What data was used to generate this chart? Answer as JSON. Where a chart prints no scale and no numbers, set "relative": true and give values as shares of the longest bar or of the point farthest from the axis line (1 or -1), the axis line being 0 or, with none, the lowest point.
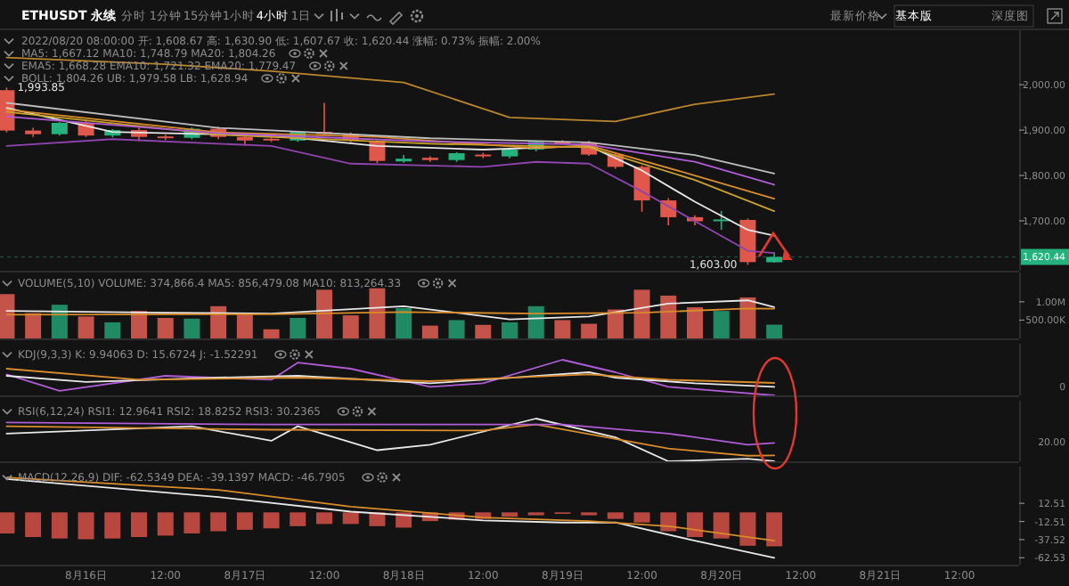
{
  "chart_data": [
    {
      "type": "candlestick",
      "title": "ETHUSDT 永续",
      "x": [
        "2022-08-15T12:00",
        "2022-08-15T16:00",
        "2022-08-15T20:00",
        "2022-08-16T00:00",
        "2022-08-16T04:00",
        "2022-08-16T08:00",
        "2022-08-16T12:00",
        "2022-08-16T16:00",
        "2022-08-16T20:00",
        "2022-08-17T00:00",
        "2022-08-17T04:00",
        "2022-08-17T08:00",
        "2022-08-17T12:00",
        "2022-08-17T16:00",
        "2022-08-17T20:00",
        "2022-08-18T00:00",
        "2022-08-18T04:00",
        "2022-08-18T08:00",
        "2022-08-18T12:00",
        "2022-08-18T16:00",
        "2022-08-18T20:00",
        "2022-08-19T00:00",
        "2022-08-19T04:00",
        "2022-08-19T08:00",
        "2022-08-19T12:00",
        "2022-08-19T16:00",
        "2022-08-19T20:00",
        "2022-08-20T00:00",
        "2022-08-20T04:00",
        "2022-08-20T08:00"
      ],
      "ohlc": [
        [
          1988,
          1993.85,
          1895,
          1899
        ],
        [
          1899,
          1905,
          1885,
          1891
        ],
        [
          1891,
          1918,
          1888,
          1916
        ],
        [
          1916,
          1920,
          1885,
          1888
        ],
        [
          1888,
          1902,
          1884,
          1900
        ],
        [
          1900,
          1905,
          1875,
          1885
        ],
        [
          1886,
          1890,
          1878,
          1885
        ],
        [
          1883,
          1906,
          1880,
          1903
        ],
        [
          1903,
          1908,
          1880,
          1885
        ],
        [
          1885,
          1890,
          1866,
          1877
        ],
        [
          1881,
          1884,
          1874,
          1880
        ],
        [
          1877,
          1898,
          1874,
          1896
        ],
        [
          1896,
          1960,
          1888,
          1891
        ],
        [
          1891,
          1895,
          1873,
          1877
        ],
        [
          1876,
          1878,
          1827,
          1832
        ],
        [
          1831,
          1845,
          1828,
          1837
        ],
        [
          1839,
          1842,
          1830,
          1834
        ],
        [
          1834,
          1851,
          1830,
          1849
        ],
        [
          1846,
          1850,
          1838,
          1845
        ],
        [
          1842,
          1859,
          1838,
          1857
        ],
        [
          1857,
          1876,
          1853,
          1874
        ],
        [
          1874,
          1878,
          1868,
          1872
        ],
        [
          1872,
          1876,
          1843,
          1846
        ],
        [
          1846,
          1850,
          1815,
          1819
        ],
        [
          1819,
          1822,
          1720,
          1745
        ],
        [
          1745,
          1750,
          1690,
          1708
        ],
        [
          1708,
          1712,
          1690,
          1699
        ],
        [
          1700,
          1722,
          1680,
          1703
        ],
        [
          1702,
          1705,
          1603,
          1609
        ],
        [
          1608.67,
          1630.9,
          1607.67,
          1620.44
        ]
      ],
      "colors": [
        "#e0574c",
        "#e0574c",
        "#26b27f",
        "#e0574c",
        "#26b27f",
        "#e0574c",
        "#e0574c",
        "#26b27f",
        "#e0574c",
        "#e0574c",
        "#e0574c",
        "#26b27f",
        "#e0574c",
        "#e0574c",
        "#e0574c",
        "#26b27f",
        "#e0574c",
        "#26b27f",
        "#e0574c",
        "#26b27f",
        "#26b27f",
        "#e0574c",
        "#e0574c",
        "#e0574c",
        "#e0574c",
        "#e0574c",
        "#e0574c",
        "#26b27f",
        "#e0574c",
        "#26b27f"
      ],
      "series": [
        {
          "type": "line",
          "color": "#e8e8e8",
          "x": [
            "2022-08-15T12:00",
            "2022-08-16T04:00",
            "2022-08-17T04:00",
            "2022-08-17T20:00",
            "2022-08-18T12:00",
            "2022-08-19T04:00",
            "2022-08-19T12:00",
            "2022-08-19T20:00",
            "2022-08-20T04:00",
            "2022-08-20T08:00"
          ],
          "values": [
            1949,
            1896,
            1888,
            1865,
            1857,
            1865,
            1811,
            1742,
            1680,
            1667.12
          ]
        },
        {
          "type": "line",
          "color": "#c9a227",
          "x": [
            "2022-08-15T12:00",
            "2022-08-16T20:00",
            "2022-08-18T04:00",
            "2022-08-19T04:00",
            "2022-08-19T20:00",
            "2022-08-20T08:00"
          ],
          "values": [
            1940,
            1890,
            1870,
            1862,
            1790,
            1721.32
          ]
        },
        {
          "type": "line",
          "color": "#d98c2b",
          "x": [
            "2022-08-15T12:00",
            "2022-08-16T20:00",
            "2022-08-17T20:00",
            "2022-08-18T20:00",
            "2022-08-19T04:00",
            "2022-08-19T20:00",
            "2022-08-20T08:00"
          ],
          "values": [
            1945,
            1895,
            1885,
            1860,
            1866,
            1800,
            1748.79
          ]
        },
        {
          "type": "line",
          "color": "#b05cd6",
          "x": [
            "2022-08-15T12:00",
            "2022-08-16T20:00",
            "2022-08-18T04:00",
            "2022-08-19T04:00",
            "2022-08-19T20:00",
            "2022-08-20T08:00"
          ],
          "values": [
            1930,
            1893,
            1875,
            1868,
            1830,
            1779.47
          ]
        },
        {
          "type": "line",
          "color": "#bdbdbd",
          "x": [
            "2022-08-15T12:00",
            "2022-08-16T20:00",
            "2022-08-18T04:00",
            "2022-08-19T04:00",
            "2022-08-19T20:00",
            "2022-08-20T08:00"
          ],
          "values": [
            1960,
            1905,
            1882,
            1873,
            1845,
            1804.26
          ]
        },
        {
          "type": "line",
          "color": "#b9862e",
          "x": [
            "2022-08-15T12:00",
            "2022-08-16T12:00",
            "2022-08-17T04:00",
            "2022-08-18T00:00",
            "2022-08-18T16:00",
            "2022-08-19T08:00",
            "2022-08-19T20:00",
            "2022-08-20T08:00"
          ],
          "values": [
            2060,
            2045,
            2030,
            2005,
            1928,
            1919,
            1957,
            1979.58
          ]
        },
        {
          "type": "line",
          "color": "#8e44ad",
          "x": [
            "2022-08-15T12:00",
            "2022-08-16T04:00",
            "2022-08-17T04:00",
            "2022-08-17T16:00",
            "2022-08-18T12:00",
            "2022-08-18T20:00",
            "2022-08-19T04:00",
            "2022-08-19T12:00",
            "2022-08-20T04:00",
            "2022-08-20T08:00"
          ],
          "values": [
            1865,
            1880,
            1865,
            1826,
            1819,
            1830,
            1826,
            1765,
            1634,
            1628.94
          ]
        }
      ],
      "xlim": [
        "2022-08-15T11:00",
        "2022-08-21T21:00"
      ],
      "ylim": [
        1590,
        2120
      ],
      "yticks": [
        {
          "value": 1700,
          "label": "1,700.00"
        },
        {
          "value": 1800,
          "label": "1,800.00"
        },
        {
          "value": 1900,
          "label": "1,900.00"
        },
        {
          "value": 2000,
          "label": "2,000.00"
        }
      ],
      "tick_labels": "y",
      "ref_lines": [
        {
          "axis": "y",
          "value": 1620.44,
          "label": "1,620.44",
          "color": "#26b27f"
        }
      ],
      "annotations": [
        "分时",
        "1分钟",
        "15分钟",
        "1小时",
        "4小时",
        "1日",
        "最新价格",
        "基本版",
        "深度图",
        "2022/08/20 08:00:00  开: 1,608.67  高: 1,630.90  低: 1,607.67  收: 1,620.44  涨幅: 0.73%  振幅: 2.00%",
        "MA5: 1,667.12  MA10: 1,748.79  MA20: 1,804.26",
        "EMA5: 1,668.28  EMA10: 1,721.32  EMA20: 1,779.47",
        "BOLL: 1,804.26  UB: 1,979.58  LB: 1,628.94",
        {
          "text": "1,993.85",
          "x": "2022-08-15T12:00",
          "y": 1993.85
        },
        {
          "text": "1,603.00",
          "x": "2022-08-20T04:00",
          "y": 1603
        }
      ]
    },
    {
      "type": "bar",
      "title": "VOLUME(5,10)  VOLUME: 374,866.4  MA5: 856,479.08  MA10: 813,264.33",
      "x": [
        "2022-08-15T12:00",
        "2022-08-15T16:00",
        "2022-08-15T20:00",
        "2022-08-16T00:00",
        "2022-08-16T04:00",
        "2022-08-16T08:00",
        "2022-08-16T12:00",
        "2022-08-16T16:00",
        "2022-08-16T20:00",
        "2022-08-17T00:00",
        "2022-08-17T04:00",
        "2022-08-17T08:00",
        "2022-08-17T12:00",
        "2022-08-17T16:00",
        "2022-08-17T20:00",
        "2022-08-18T00:00",
        "2022-08-18T04:00",
        "2022-08-18T08:00",
        "2022-08-18T12:00",
        "2022-08-18T16:00",
        "2022-08-18T20:00",
        "2022-08-19T00:00",
        "2022-08-19T04:00",
        "2022-08-19T08:00",
        "2022-08-19T12:00",
        "2022-08-19T16:00",
        "2022-08-19T20:00",
        "2022-08-20T00:00",
        "2022-08-20T04:00",
        "2022-08-20T08:00"
      ],
      "series": [
        {
          "type": "bar",
          "values": [
            1210000,
            690000,
            920000,
            600000,
            440000,
            750000,
            560000,
            540000,
            880000,
            690000,
            250000,
            560000,
            1330000,
            630000,
            1370000,
            830000,
            350000,
            500000,
            370000,
            440000,
            880000,
            500000,
            400000,
            790000,
            1330000,
            1170000,
            850000,
            750000,
            1120000,
            374866.4
          ],
          "colors": [
            "#c4534a",
            "#c4534a",
            "#1f8a63",
            "#c4534a",
            "#1f8a63",
            "#c4534a",
            "#c4534a",
            "#1f8a63",
            "#c4534a",
            "#c4534a",
            "#c4534a",
            "#1f8a63",
            "#c4534a",
            "#c4534a",
            "#c4534a",
            "#1f8a63",
            "#c4534a",
            "#1f8a63",
            "#c4534a",
            "#1f8a63",
            "#1f8a63",
            "#c4534a",
            "#c4534a",
            "#c4534a",
            "#c4534a",
            "#c4534a",
            "#c4534a",
            "#1f8a63",
            "#c4534a",
            "#1f8a63"
          ]
        },
        {
          "type": "line",
          "color": "#e8e8e8",
          "x": [
            "2022-08-15T12:00",
            "2022-08-16T12:00",
            "2022-08-17T04:00",
            "2022-08-18T00:00",
            "2022-08-18T16:00",
            "2022-08-19T04:00",
            "2022-08-19T16:00",
            "2022-08-20T04:00",
            "2022-08-20T08:00"
          ],
          "values": [
            750000,
            700000,
            680000,
            880000,
            520000,
            600000,
            950000,
            1040000,
            856479.08
          ]
        },
        {
          "type": "line",
          "color": "#d98c2b",
          "x": [
            "2022-08-15T12:00",
            "2022-08-17T04:00",
            "2022-08-18T00:00",
            "2022-08-18T20:00",
            "2022-08-19T12:00",
            "2022-08-20T04:00",
            "2022-08-20T08:00"
          ],
          "values": [
            650000,
            660000,
            720000,
            680000,
            700000,
            820000,
            813264.33
          ]
        }
      ],
      "xlim": [
        "2022-08-15T11:00",
        "2022-08-21T21:00"
      ],
      "ylim": [
        0,
        1800000
      ],
      "yticks": [
        {
          "value": 500000,
          "label": "500.00K"
        },
        {
          "value": 1000000,
          "label": "1.00M"
        }
      ],
      "tick_labels": "y"
    },
    {
      "type": "line",
      "title": "KDJ(9,3,3)  K: 9.94063  D: 15.6724  J: -1.52291",
      "series": [
        {
          "type": "line",
          "color": "#b05cd6",
          "x": [
            "2022-08-15T12:00",
            "2022-08-15T20:00",
            "2022-08-16T12:00",
            "2022-08-17T04:00",
            "2022-08-17T08:00",
            "2022-08-17T16:00",
            "2022-08-18T04:00",
            "2022-08-18T12:00",
            "2022-08-19T00:00",
            "2022-08-19T08:00",
            "2022-08-19T16:00",
            "2022-08-20T08:00"
          ],
          "values": [
            0.59,
            0.13,
            0.55,
            0.44,
            0.92,
            0.75,
            0.24,
            0.34,
            1,
            0.65,
            0.24,
            0
          ]
        },
        {
          "type": "line",
          "color": "#e8e8e8",
          "x": [
            "2022-08-15T12:00",
            "2022-08-16T00:00",
            "2022-08-16T20:00",
            "2022-08-17T08:00",
            "2022-08-18T04:00",
            "2022-08-18T12:00",
            "2022-08-19T04:00",
            "2022-08-19T08:00",
            "2022-08-19T20:00",
            "2022-08-20T08:00"
          ],
          "values": [
            0.55,
            0.38,
            0.5,
            0.55,
            0.34,
            0.44,
            0.65,
            0.5,
            0.34,
            0.24
          ]
        },
        {
          "type": "line",
          "color": "#d98c2b",
          "x": [
            "2022-08-15T12:00",
            "2022-08-16T08:00",
            "2022-08-17T08:00",
            "2022-08-18T04:00",
            "2022-08-19T04:00",
            "2022-08-19T16:00",
            "2022-08-20T08:00"
          ],
          "values": [
            0.75,
            0.44,
            0.5,
            0.4,
            0.59,
            0.44,
            0.35
          ]
        }
      ],
      "relative": true,
      "xlim": [
        "2022-08-15T11:00",
        "2022-08-21T21:00"
      ],
      "tick_labels": false,
      "annotations": [
        "0"
      ]
    },
    {
      "type": "line",
      "title": "RSI(6,12,24)  RSI1: 12.9641  RSI2: 18.8252  RSI3: 30.2365",
      "series": [
        {
          "type": "line",
          "color": "#e8e8e8",
          "x": [
            "2022-08-15T12:00",
            "2022-08-16T16:00",
            "2022-08-17T04:00",
            "2022-08-17T08:00",
            "2022-08-17T20:00",
            "2022-08-18T04:00",
            "2022-08-18T20:00",
            "2022-08-19T08:00",
            "2022-08-19T16:00",
            "2022-08-20T04:00",
            "2022-08-20T08:00"
          ],
          "values": [
            0.65,
            0.82,
            0.48,
            0.82,
            0.26,
            0.39,
            1,
            0.56,
            0,
            0.06,
            0
          ]
        },
        {
          "type": "line",
          "color": "#d98c2b",
          "x": [
            "2022-08-15T12:00",
            "2022-08-17T04:00",
            "2022-08-18T12:00",
            "2022-08-18T20:00",
            "2022-08-19T16:00",
            "2022-08-20T04:00",
            "2022-08-20T08:00"
          ],
          "values": [
            0.82,
            0.74,
            0.72,
            0.86,
            0.3,
            0.13,
            0.14
          ]
        },
        {
          "type": "line",
          "color": "#b05cd6",
          "x": [
            "2022-08-15T12:00",
            "2022-08-17T04:00",
            "2022-08-19T00:00",
            "2022-08-19T16:00",
            "2022-08-20T04:00",
            "2022-08-20T08:00"
          ],
          "values": [
            0.91,
            0.86,
            0.86,
            0.65,
            0.39,
            0.43
          ]
        }
      ],
      "relative": true,
      "xlim": [
        "2022-08-15T11:00",
        "2022-08-21T21:00"
      ],
      "tick_labels": false,
      "annotations": [
        "20.00"
      ]
    },
    {
      "type": "bar",
      "title": "MACD(12,26,9)  DIF: -62.5349  DEA: -39.1397  MACD: -46.7905",
      "x": [
        "2022-08-15T12:00",
        "2022-08-15T16:00",
        "2022-08-15T20:00",
        "2022-08-16T00:00",
        "2022-08-16T04:00",
        "2022-08-16T08:00",
        "2022-08-16T12:00",
        "2022-08-16T16:00",
        "2022-08-16T20:00",
        "2022-08-17T00:00",
        "2022-08-17T04:00",
        "2022-08-17T08:00",
        "2022-08-17T12:00",
        "2022-08-17T16:00",
        "2022-08-17T20:00",
        "2022-08-18T00:00",
        "2022-08-18T04:00",
        "2022-08-18T08:00",
        "2022-08-18T12:00",
        "2022-08-18T16:00",
        "2022-08-18T20:00",
        "2022-08-19T00:00",
        "2022-08-19T04:00",
        "2022-08-19T08:00",
        "2022-08-19T12:00",
        "2022-08-19T16:00",
        "2022-08-19T20:00",
        "2022-08-20T00:00",
        "2022-08-20T04:00",
        "2022-08-20T08:00"
      ],
      "series": [
        {
          "type": "bar",
          "color": "#b8483f",
          "values": [
            -29,
            -34,
            -36,
            -37,
            -36,
            -34,
            -32,
            -29,
            -26,
            -24,
            -22,
            -19,
            -16,
            -16,
            -19,
            -21,
            -12,
            -10,
            -9,
            -6,
            -4,
            -2,
            -4,
            -9,
            -14,
            -26,
            -34,
            -36,
            -46,
            -46.7905
          ]
        },
        {
          "type": "line",
          "color": "#e8e8e8",
          "x": [
            "2022-08-15T12:00",
            "2022-08-16T20:00",
            "2022-08-17T16:00",
            "2022-08-18T12:00",
            "2022-08-19T00:00",
            "2022-08-19T08:00",
            "2022-08-19T20:00",
            "2022-08-20T08:00"
          ],
          "values": [
            46,
            21,
            1,
            -11,
            -14,
            -14,
            -39,
            -62.5349
          ]
        },
        {
          "type": "line",
          "color": "#d98c2b",
          "x": [
            "2022-08-15T12:00",
            "2022-08-16T20:00",
            "2022-08-17T16:00",
            "2022-08-18T12:00",
            "2022-08-19T04:00",
            "2022-08-19T16:00",
            "2022-08-20T08:00"
          ],
          "values": [
            48,
            31,
            8,
            -7,
            -12,
            -19,
            -39.1397
          ]
        }
      ],
      "xlim": [
        "2022-08-15T11:00",
        "2022-08-21T21:00"
      ],
      "ylim": [
        -72,
        63
      ],
      "yticks": [
        12.51,
        -12.51,
        -37.52,
        -62.53
      ],
      "xticks": [
        {
          "value": "2022-08-16T00:00",
          "label": "8月16日"
        },
        {
          "value": "2022-08-16T12:00",
          "label": "12:00"
        },
        {
          "value": "2022-08-17T00:00",
          "label": "8月17日"
        },
        {
          "value": "2022-08-17T12:00",
          "label": "12:00"
        },
        {
          "value": "2022-08-18T00:00",
          "label": "8月18日"
        },
        {
          "value": "2022-08-18T12:00",
          "label": "12:00"
        },
        {
          "value": "2022-08-19T00:00",
          "label": "8月19日"
        },
        {
          "value": "2022-08-19T12:00",
          "label": "12:00"
        },
        {
          "value": "2022-08-20T00:00",
          "label": "8月20日"
        },
        {
          "value": "2022-08-20T12:00",
          "label": "12:00"
        },
        {
          "value": "2022-08-21T00:00",
          "label": "8月21日"
        },
        {
          "value": "2022-08-21T12:00",
          "label": "12:00"
        }
      ]
    }
  ]
}
